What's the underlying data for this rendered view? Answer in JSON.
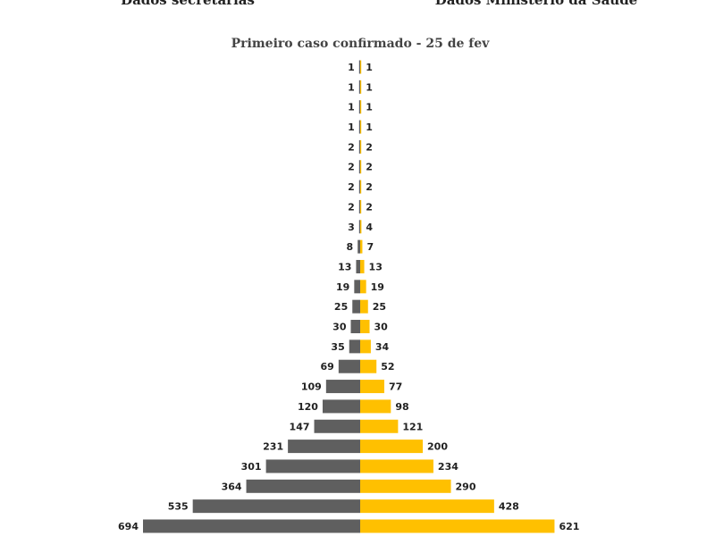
{
  "chart_data": {
    "type": "bar",
    "orientation": "horizontal-butterfly",
    "title": "Primeiro caso confirmado - 25 de fev",
    "grid": false,
    "series": [
      {
        "name": "Dados secretarias",
        "color": "#5f5f5f",
        "side": "left",
        "values": [
          1,
          1,
          1,
          1,
          2,
          2,
          2,
          2,
          3,
          8,
          13,
          19,
          25,
          30,
          35,
          69,
          109,
          120,
          147,
          231,
          301,
          364,
          535,
          694
        ]
      },
      {
        "name": "Dados Ministério da Saúde",
        "color": "#ffc000",
        "side": "right",
        "values": [
          1,
          1,
          1,
          1,
          2,
          2,
          2,
          2,
          4,
          7,
          13,
          19,
          25,
          30,
          34,
          52,
          77,
          98,
          121,
          200,
          234,
          290,
          428,
          621
        ]
      }
    ],
    "xlim": [
      -700,
      700
    ]
  }
}
